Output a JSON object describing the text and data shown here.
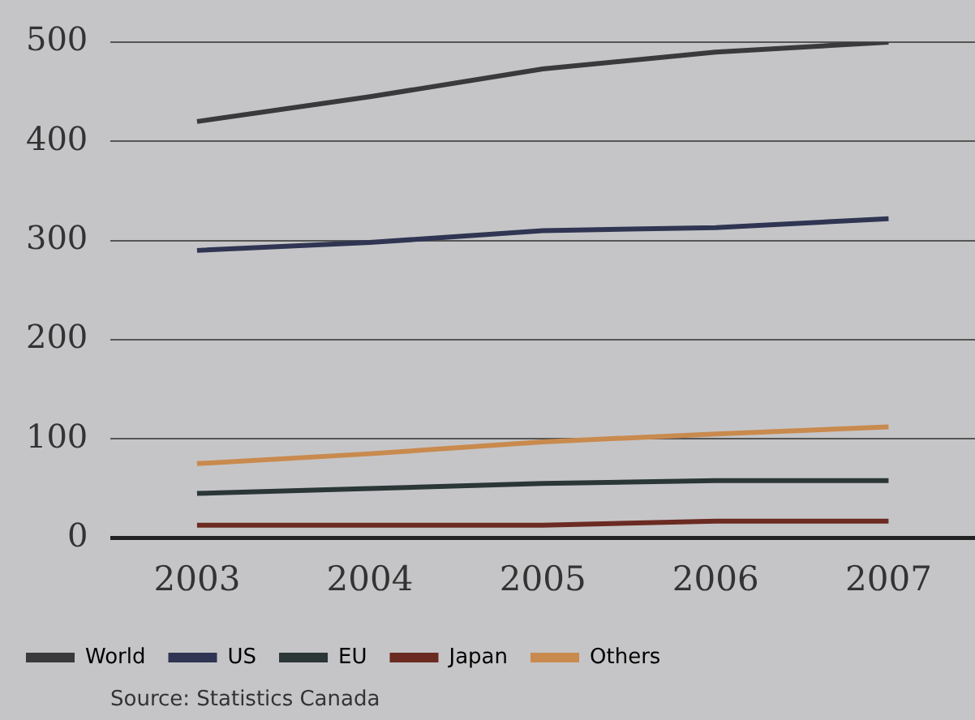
{
  "chart_data": {
    "type": "line",
    "categories": [
      "2003",
      "2004",
      "2005",
      "2006",
      "2007"
    ],
    "series": [
      {
        "name": "World",
        "color": "#3a3a3c",
        "values": [
          420,
          445,
          473,
          490,
          500
        ]
      },
      {
        "name": "US",
        "color": "#2f3552",
        "values": [
          290,
          298,
          310,
          313,
          322
        ]
      },
      {
        "name": "EU",
        "color": "#2b3636",
        "values": [
          45,
          50,
          55,
          58,
          58
        ]
      },
      {
        "name": "Japan",
        "color": "#6b2a22",
        "values": [
          13,
          13,
          13,
          17,
          17
        ]
      },
      {
        "name": "Others",
        "color": "#c98a4e",
        "values": [
          75,
          85,
          97,
          105,
          112
        ]
      }
    ],
    "ylim": [
      0,
      500
    ],
    "yticks": [
      0,
      100,
      200,
      300,
      400,
      500
    ],
    "grid": "y",
    "legend": "bottom",
    "marker": "none",
    "line_style": "solid",
    "annotations": [
      "Source: Statistics Canada"
    ]
  }
}
